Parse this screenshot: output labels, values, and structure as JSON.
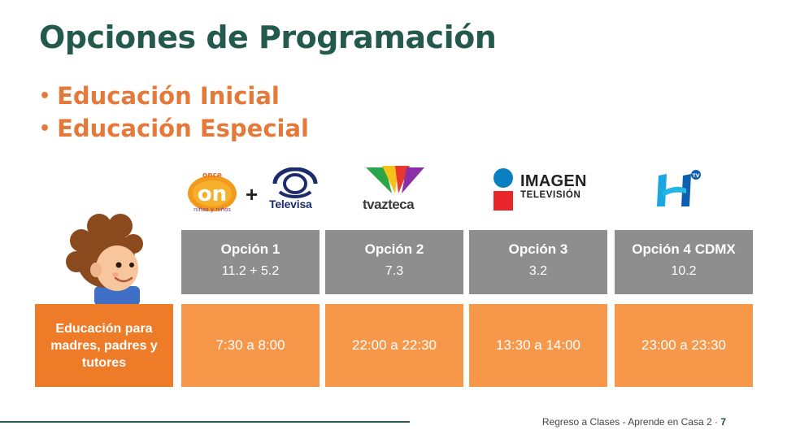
{
  "title": "Opciones de Programación",
  "bullets": [
    "Educación Inicial",
    "Educación Especial"
  ],
  "logos": {
    "once_icon": "once-ninas-y-ninos-logo",
    "plus": "+",
    "televisa_label": "Televisa",
    "azteca_label": "tvazteca",
    "imagen_title": "IMAGEN",
    "imagen_subtitle": "TELEVISIÓN",
    "h_icon": "canal-h-tv-logo"
  },
  "options": [
    {
      "name": "Opción 1",
      "channel": "11.2  +  5.2",
      "time": "7:30 a 8:00"
    },
    {
      "name": "Opción 2",
      "channel": "7.3",
      "time": "22:00 a 22:30"
    },
    {
      "name": "Opción 3",
      "channel": "3.2",
      "time": "13:30 a 14:00"
    },
    {
      "name": "Opción 4 CDMX",
      "channel": "10.2",
      "time": "23:00 a 23:30"
    }
  ],
  "row_header": "Educación para madres, padres y tutores",
  "footer": {
    "text": "Regreso a Clases - Aprende en Casa 2 · ",
    "page": "7"
  },
  "colors": {
    "title": "#24594d",
    "bullet": "#e5793a",
    "option_box": "#8e8e8e",
    "time_box": "#f7974a",
    "row_header": "#ed7b28"
  }
}
